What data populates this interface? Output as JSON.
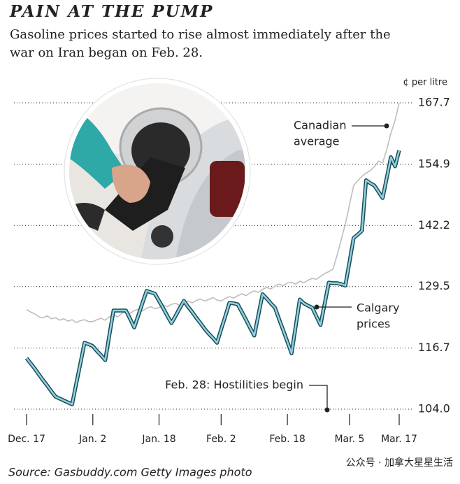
{
  "chart_data": {
    "type": "line",
    "title": "PAIN AT THE PUMP",
    "subtitle_lines": [
      "Gasoline prices started to rise almost immediately after the",
      "war on Iran began on Feb. 28."
    ],
    "y_unit": "¢ per litre",
    "source": "Source: Gasbuddy.com  Getty Images photo",
    "watermark": "公众号 · 加拿大星星生活",
    "annotations": [
      {
        "lines": [
          "Canadian",
          "average"
        ]
      },
      {
        "lines": [
          "Calgary",
          "prices"
        ]
      },
      {
        "lines": [
          "Feb. 28: Hostilities begin"
        ]
      }
    ],
    "categories": [
      "Dec. 17",
      null,
      null,
      null,
      null,
      null,
      null,
      null,
      null,
      null,
      null,
      null,
      null,
      null,
      null,
      null,
      "Jan. 2",
      null,
      null,
      null,
      null,
      null,
      null,
      null,
      null,
      null,
      null,
      null,
      null,
      null,
      null,
      null,
      "Jan. 18",
      null,
      null,
      null,
      null,
      null,
      null,
      null,
      null,
      null,
      null,
      null,
      null,
      null,
      null,
      "Feb. 2",
      null,
      null,
      null,
      null,
      null,
      null,
      null,
      null,
      null,
      null,
      null,
      null,
      null,
      null,
      null,
      "Feb. 18",
      null,
      null,
      null,
      null,
      null,
      null,
      null,
      null,
      null,
      null,
      null,
      null,
      null,
      null,
      "Mar. 5",
      null,
      null,
      null,
      null,
      null,
      null,
      null,
      null,
      null,
      null,
      null,
      "Mar. 17"
    ],
    "series": [
      {
        "name": "Canadian average",
        "color": "#bdbdbd",
        "values": [
          124.7,
          124.2,
          123.8,
          123.2,
          123.0,
          123.4,
          122.8,
          123.0,
          122.5,
          122.8,
          122.3,
          122.6,
          122.0,
          122.4,
          122.6,
          122.2,
          122.2,
          122.6,
          122.9,
          122.5,
          123.2,
          123.6,
          123.2,
          123.9,
          124.3,
          123.9,
          124.5,
          124.8,
          124.4,
          125.0,
          125.3,
          124.9,
          125.1,
          125.6,
          125.3,
          125.8,
          126.0,
          125.6,
          126.2,
          126.5,
          126.1,
          126.6,
          126.9,
          126.5,
          126.8,
          127.2,
          126.7,
          126.5,
          127.0,
          127.4,
          127.1,
          127.6,
          128.0,
          127.6,
          128.2,
          128.6,
          128.3,
          128.9,
          129.3,
          129.0,
          129.6,
          130.0,
          129.7,
          130.2,
          130.4,
          130.0,
          130.6,
          130.3,
          130.8,
          131.2,
          131.0,
          131.6,
          132.2,
          132.6,
          133.1,
          136.0,
          139.2,
          142.5,
          146.5,
          150.5,
          151.5,
          152.4,
          153.1,
          153.6,
          154.4,
          155.6,
          155.2,
          158.0,
          161.4,
          164.0,
          167.7
        ]
      },
      {
        "name": "Calgary prices",
        "color": "#8fd3e0",
        "values": [
          114.6,
          113.5,
          112.4,
          111.2,
          110.0,
          108.9,
          107.7,
          106.6,
          106.2,
          105.8,
          105.4,
          105.0,
          109.3,
          113.5,
          117.8,
          117.5,
          117.1,
          116.1,
          115.2,
          114.2,
          119.4,
          124.5,
          124.5,
          124.5,
          124.5,
          122.8,
          121.0,
          123.5,
          126.1,
          128.6,
          128.3,
          128.0,
          126.5,
          125.0,
          123.4,
          121.9,
          123.4,
          125.0,
          126.5,
          125.3,
          124.2,
          123.0,
          121.9,
          120.7,
          119.7,
          118.8,
          117.8,
          120.6,
          123.3,
          126.1,
          126.0,
          125.8,
          124.2,
          122.6,
          120.9,
          119.3,
          123.6,
          127.9,
          127.0,
          126.0,
          125.1,
          122.7,
          120.4,
          118.0,
          115.6,
          121.2,
          126.8,
          126.0,
          125.5,
          125.1,
          123.3,
          121.5,
          125.9,
          130.3,
          130.2,
          130.2,
          130.0,
          129.7,
          134.6,
          139.6,
          140.3,
          141.1,
          151.6,
          151.0,
          150.5,
          149.2,
          147.9,
          152.1,
          156.4,
          154.5,
          157.8
        ]
      }
    ],
    "ylim": [
      104,
      167.7
    ],
    "yticks": [
      {
        "value": 104,
        "label": "104.0"
      },
      116.7,
      129.5,
      142.2,
      154.9,
      167.7
    ],
    "grid": true
  }
}
